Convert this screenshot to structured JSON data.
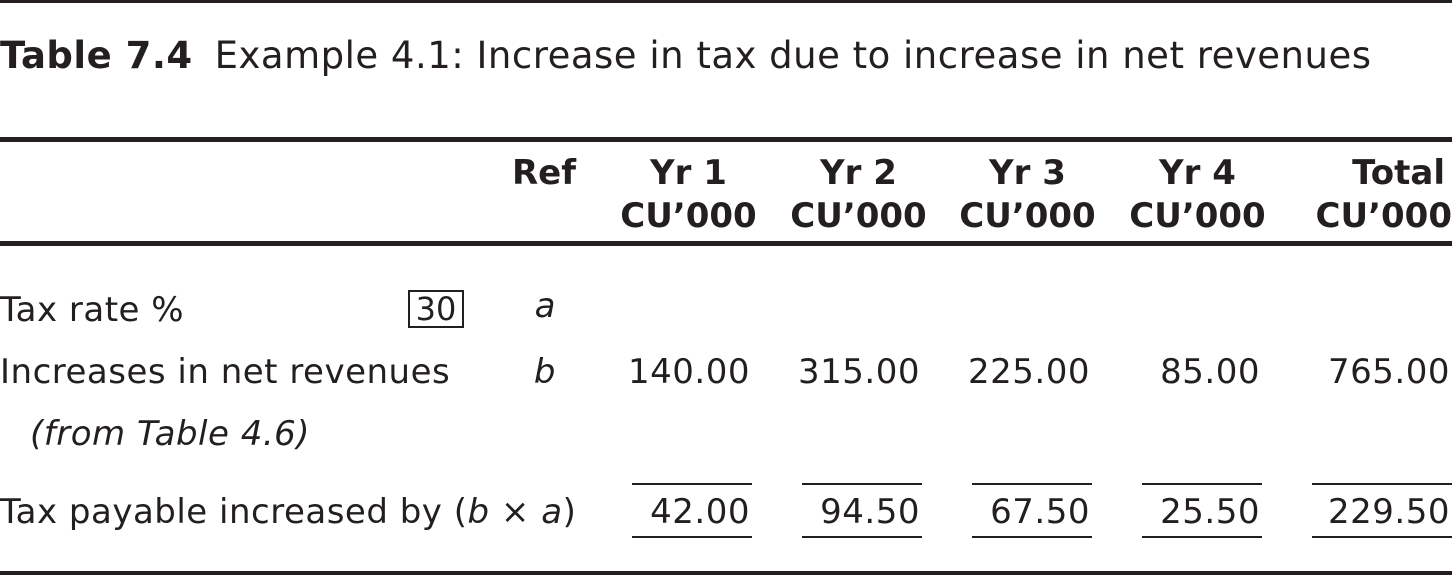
{
  "title": {
    "number": "Table 7.4",
    "caption": "Example 4.1: Increase in tax due to increase in net revenues"
  },
  "columns": [
    {
      "line1": "Yr 1",
      "line2": "CU’000"
    },
    {
      "line1": "Yr 2",
      "line2": "CU’000"
    },
    {
      "line1": "Yr 3",
      "line2": "CU’000"
    },
    {
      "line1": "Yr 4",
      "line2": "CU’000"
    },
    {
      "line1": "Total",
      "line2": "CU’000"
    }
  ],
  "ref_header": "Ref",
  "rows": {
    "tax_rate": {
      "label": "Tax rate %",
      "input": "30",
      "ref": "a"
    },
    "revenues": {
      "label": "Increases in net revenues",
      "sublabel": "(from Table 4.6)",
      "ref": "b",
      "values": [
        "140.00",
        "315.00",
        "225.00",
        "85.00",
        "765.00"
      ]
    },
    "tax_payable": {
      "label_prefix": "Tax payable increased by (",
      "b": "b",
      "times": " × ",
      "a": "a",
      "label_suffix": ")",
      "values": [
        "42.00",
        "94.50",
        "67.50",
        "25.50",
        "229.50"
      ]
    }
  }
}
